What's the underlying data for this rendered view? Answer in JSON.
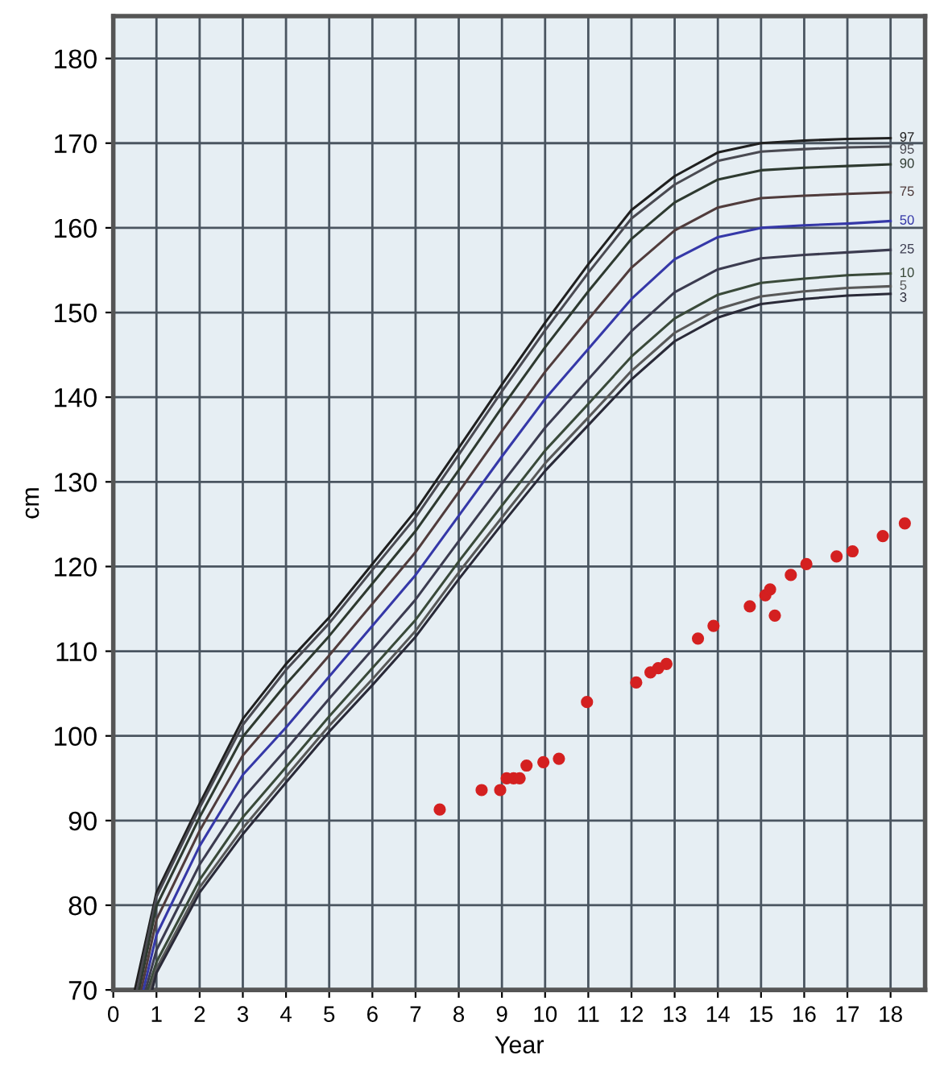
{
  "chart_data": {
    "type": "line",
    "xlabel": "Year",
    "ylabel": "cm",
    "xlim": [
      0,
      18.8
    ],
    "ylim": [
      70,
      185
    ],
    "xticks": [
      0,
      1,
      2,
      3,
      4,
      5,
      6,
      7,
      8,
      9,
      10,
      11,
      12,
      13,
      14,
      15,
      16,
      17,
      18
    ],
    "yticks": [
      70,
      80,
      90,
      100,
      110,
      120,
      130,
      140,
      150,
      160,
      170,
      180
    ],
    "grid": true,
    "legend": false,
    "line_style": "solid",
    "series": [
      {
        "name": "97",
        "color": "#202020",
        "x": [
          0.5,
          1,
          2,
          3,
          4,
          5,
          6,
          7,
          8,
          9,
          10,
          11,
          12,
          13,
          14,
          15,
          16,
          17,
          18
        ],
        "values": [
          70,
          81.5,
          92.0,
          102.0,
          108.5,
          114.0,
          120.3,
          126.6,
          134.0,
          141.5,
          148.8,
          155.7,
          162.1,
          166.1,
          168.9,
          170.0,
          170.3,
          170.5,
          170.6
        ]
      },
      {
        "name": "95",
        "color": "#4a4a52",
        "x": [
          0.55,
          1,
          2,
          3,
          4,
          5,
          6,
          7,
          8,
          9,
          10,
          11,
          12,
          13,
          14,
          15,
          16,
          17,
          18
        ],
        "values": [
          70,
          81.0,
          91.5,
          101.3,
          107.8,
          113.3,
          119.6,
          125.8,
          133.2,
          140.7,
          147.9,
          154.7,
          161.1,
          165.1,
          167.9,
          169.0,
          169.3,
          169.5,
          169.6
        ]
      },
      {
        "name": "90",
        "color": "#2e3a30",
        "x": [
          0.6,
          1,
          2,
          3,
          4,
          5,
          6,
          7,
          8,
          9,
          10,
          11,
          12,
          13,
          14,
          15,
          16,
          17,
          18
        ],
        "values": [
          70,
          79.9,
          90.4,
          99.9,
          106.1,
          111.8,
          118.0,
          124.2,
          131.4,
          138.8,
          145.9,
          152.5,
          158.7,
          163.0,
          165.7,
          166.8,
          167.1,
          167.3,
          167.5
        ]
      },
      {
        "name": "75",
        "color": "#503c3c",
        "x": [
          0.65,
          1,
          2,
          3,
          4,
          5,
          6,
          7,
          8,
          9,
          10,
          11,
          12,
          13,
          14,
          15,
          16,
          17,
          18
        ],
        "values": [
          70,
          78.3,
          88.8,
          97.7,
          103.6,
          109.5,
          115.6,
          121.7,
          128.8,
          136.0,
          143.0,
          149.2,
          155.3,
          159.7,
          162.4,
          163.5,
          163.8,
          164.0,
          164.2
        ]
      },
      {
        "name": "50",
        "color": "#3538a8",
        "x": [
          0.7,
          1,
          2,
          3,
          4,
          5,
          6,
          7,
          8,
          9,
          10,
          11,
          12,
          13,
          14,
          15,
          16,
          17,
          18
        ],
        "values": [
          70,
          76.5,
          87.0,
          95.4,
          101.0,
          107.0,
          113.0,
          119.0,
          126.0,
          133.0,
          139.8,
          145.7,
          151.6,
          156.3,
          158.9,
          160.0,
          160.3,
          160.5,
          160.8
        ]
      },
      {
        "name": "25",
        "color": "#3c3c50",
        "x": [
          0.75,
          1,
          2,
          3,
          4,
          5,
          6,
          7,
          8,
          9,
          10,
          11,
          12,
          13,
          14,
          15,
          16,
          17,
          18
        ],
        "values": [
          70,
          74.7,
          84.8,
          92.6,
          98.4,
          104.4,
          110.2,
          116.1,
          123.0,
          129.8,
          136.4,
          142.1,
          147.8,
          152.4,
          155.1,
          156.4,
          156.8,
          157.1,
          157.4
        ]
      },
      {
        "name": "10",
        "color": "#3a4a3a",
        "x": [
          0.8,
          1,
          2,
          3,
          4,
          5,
          6,
          7,
          8,
          9,
          10,
          11,
          12,
          13,
          14,
          15,
          16,
          17,
          18
        ],
        "values": [
          70,
          73.3,
          83.0,
          90.4,
          96.3,
          102.3,
          108.0,
          113.7,
          120.6,
          127.2,
          133.7,
          139.2,
          144.8,
          149.3,
          152.1,
          153.5,
          154.0,
          154.4,
          154.6
        ]
      },
      {
        "name": "5",
        "color": "#585858",
        "x": [
          0.85,
          1,
          2,
          3,
          4,
          5,
          6,
          7,
          8,
          9,
          10,
          11,
          12,
          13,
          14,
          15,
          16,
          17,
          18
        ],
        "values": [
          70,
          72.5,
          82.1,
          89.1,
          95.2,
          101.2,
          106.7,
          112.4,
          119.3,
          125.8,
          132.2,
          137.6,
          143.1,
          147.6,
          150.4,
          151.9,
          152.5,
          152.9,
          153.1
        ]
      },
      {
        "name": "3",
        "color": "#2a2a38",
        "x": [
          0.9,
          1,
          2,
          3,
          4,
          5,
          6,
          7,
          8,
          9,
          10,
          11,
          12,
          13,
          14,
          15,
          16,
          17,
          18
        ],
        "values": [
          70,
          72.0,
          81.5,
          88.4,
          94.5,
          100.5,
          106.0,
          111.7,
          118.5,
          125.0,
          131.3,
          136.7,
          142.1,
          146.6,
          149.4,
          151.0,
          151.6,
          152.0,
          152.2
        ]
      },
      {
        "type": "scatter",
        "color": "#d42020",
        "x": [
          7.56,
          8.53,
          8.96,
          9.11,
          9.27,
          9.41,
          9.57,
          9.96,
          10.32,
          10.97,
          12.11,
          12.44,
          12.62,
          12.81,
          13.54,
          13.9,
          14.74,
          15.1,
          15.21,
          15.32,
          15.69,
          16.05,
          16.75,
          17.12,
          17.82,
          18.33
        ],
        "values": [
          91.3,
          93.6,
          93.6,
          95.0,
          95.0,
          95.0,
          96.5,
          96.9,
          97.3,
          104.0,
          106.3,
          107.5,
          108.0,
          108.5,
          111.5,
          113.0,
          115.3,
          116.6,
          117.3,
          114.2,
          119.0,
          120.3,
          121.2,
          121.8,
          123.6,
          125.1
        ]
      }
    ]
  }
}
